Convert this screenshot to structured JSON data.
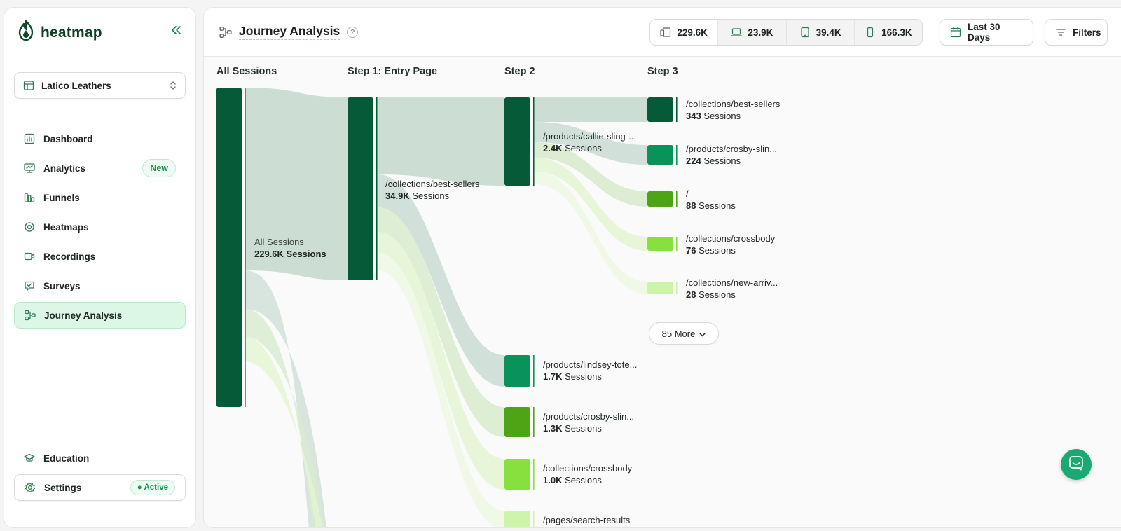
{
  "brand": {
    "name": "heatmap"
  },
  "site_selector": {
    "label": "Latico Leathers"
  },
  "nav": {
    "items": [
      {
        "label": "Dashboard",
        "icon": "dashboard-icon"
      },
      {
        "label": "Analytics",
        "icon": "analytics-icon",
        "badge": "New"
      },
      {
        "label": "Funnels",
        "icon": "funnels-icon"
      },
      {
        "label": "Heatmaps",
        "icon": "heatmaps-icon"
      },
      {
        "label": "Recordings",
        "icon": "recordings-icon"
      },
      {
        "label": "Surveys",
        "icon": "surveys-icon"
      },
      {
        "label": "Journey Analysis",
        "icon": "journey-icon",
        "active": true
      }
    ],
    "bottom": [
      {
        "label": "Education",
        "icon": "education-icon"
      },
      {
        "label": "Settings",
        "icon": "settings-icon",
        "badge": "Active"
      }
    ]
  },
  "header": {
    "title": "Journey Analysis",
    "help": "?",
    "devices": [
      {
        "icon": "all-devices-icon",
        "count": "229.6K"
      },
      {
        "icon": "desktop-icon",
        "count": "23.9K"
      },
      {
        "icon": "tablet-icon",
        "count": "39.4K"
      },
      {
        "icon": "mobile-icon",
        "count": "166.3K"
      }
    ],
    "date_range": "Last 30 Days",
    "filters": "Filters"
  },
  "columns": [
    "All Sessions",
    "Step 1: Entry Page",
    "Step 2",
    "Step 3"
  ],
  "colors": {
    "dark": "#075a37",
    "mid": "#09935a",
    "olive": "#4da414",
    "lime": "#86e03e",
    "pale": "#cdf5a9",
    "link": "#c9dbd2",
    "accent": "#16944f"
  },
  "nodes": {
    "all": {
      "title": "All Sessions",
      "count": "229.6K",
      "unit": "Sessions"
    },
    "entry": {
      "title": "/collections/best-sellers",
      "count": "34.9K",
      "unit": "Sessions"
    },
    "step2": [
      {
        "title": "/products/callie-sling-...",
        "count": "2.4K",
        "unit": "Sessions"
      },
      {
        "title": "/products/lindsey-tote...",
        "count": "1.7K",
        "unit": "Sessions"
      },
      {
        "title": "/products/crosby-slin...",
        "count": "1.3K",
        "unit": "Sessions"
      },
      {
        "title": "/collections/crossbody",
        "count": "1.0K",
        "unit": "Sessions"
      },
      {
        "title": "/pages/search-results",
        "count": "",
        "unit": ""
      }
    ],
    "step3": [
      {
        "title": "/collections/best-sellers",
        "count": "343",
        "unit": "Sessions"
      },
      {
        "title": "/products/crosby-slin...",
        "count": "224",
        "unit": "Sessions"
      },
      {
        "title": "/",
        "count": "88",
        "unit": "Sessions"
      },
      {
        "title": "/collections/crossbody",
        "count": "76",
        "unit": "Sessions"
      },
      {
        "title": "/collections/new-arriv...",
        "count": "28",
        "unit": "Sessions"
      }
    ],
    "more": "85 More"
  }
}
